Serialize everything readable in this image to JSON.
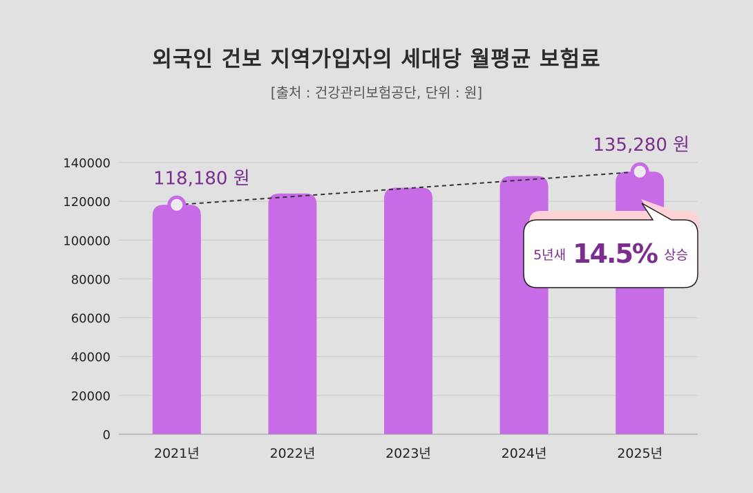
{
  "chart_data": {
    "type": "bar",
    "title": "외국인 건보 지역가입자의 세대당 월평균 보험료",
    "subtitle": "[출처 : 건강관리보험공단, 단위 : 원]",
    "categories": [
      "2021년",
      "2022년",
      "2023년",
      "2024년",
      "2025년"
    ],
    "values": [
      118180,
      124000,
      127000,
      133000,
      135280
    ],
    "ylim": [
      0,
      140000
    ],
    "yticks": [
      0,
      20000,
      40000,
      60000,
      80000,
      100000,
      120000,
      140000
    ],
    "grid": true,
    "bar_color": "#c86be6",
    "label_color": "#7a2e8e",
    "trend_line": {
      "from": "2021년",
      "to": "2025년",
      "style": "dashed"
    },
    "annotations": [
      {
        "category": "2021년",
        "text": "118,180 원"
      },
      {
        "category": "2025년",
        "text": "135,280 원"
      }
    ],
    "callout": {
      "lead": "5년새",
      "value": "14.5%",
      "tail": "상승"
    }
  }
}
